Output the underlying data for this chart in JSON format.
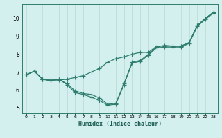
{
  "xlabel": "Humidex (Indice chaleur)",
  "background_color": "#d4f0ee",
  "line_color": "#2e7d6e",
  "xlim": [
    -0.5,
    23.5
  ],
  "ylim": [
    4.7,
    10.8
  ],
  "x_ticks": [
    0,
    1,
    2,
    3,
    4,
    5,
    6,
    7,
    8,
    9,
    10,
    11,
    12,
    13,
    14,
    15,
    16,
    17,
    18,
    19,
    20,
    21,
    22,
    23
  ],
  "y_ticks": [
    5,
    6,
    7,
    8,
    9,
    10
  ],
  "grid_color": "#b8d8d4",
  "markersize": 2.0,
  "linewidth": 0.9,
  "line1_x": [
    0,
    1,
    2,
    3,
    4,
    5,
    6,
    7,
    8,
    9,
    10,
    11,
    12,
    13,
    14,
    15,
    16,
    17,
    18,
    19,
    20,
    21,
    22,
    23
  ],
  "line1_y": [
    6.85,
    7.05,
    6.6,
    6.55,
    6.55,
    6.6,
    6.7,
    6.8,
    7.0,
    7.2,
    7.55,
    7.75,
    7.85,
    8.0,
    8.1,
    8.1,
    8.45,
    8.45,
    8.45,
    8.45,
    8.65,
    9.6,
    10.0,
    10.35
  ],
  "line2_x": [
    0,
    1,
    2,
    3,
    4,
    5,
    6,
    7,
    8,
    9,
    10,
    11,
    12,
    13,
    14,
    15,
    16,
    17,
    18,
    19,
    20,
    21,
    22,
    23
  ],
  "line2_y": [
    6.85,
    7.05,
    6.6,
    6.5,
    6.6,
    6.3,
    5.85,
    5.75,
    5.6,
    5.4,
    5.15,
    5.2,
    6.3,
    7.5,
    7.6,
    7.95,
    8.35,
    8.4,
    8.4,
    8.4,
    8.6,
    9.55,
    9.95,
    10.3
  ],
  "line3_x": [
    0,
    1,
    2,
    3,
    4,
    5,
    6,
    7,
    8,
    9,
    10,
    11,
    12,
    13,
    14,
    15,
    16,
    17,
    18,
    19,
    20,
    21,
    22,
    23
  ],
  "line3_y": [
    6.85,
    7.05,
    6.6,
    6.55,
    6.6,
    6.35,
    5.95,
    5.8,
    5.75,
    5.55,
    5.2,
    5.25,
    6.35,
    7.55,
    7.65,
    8.0,
    8.4,
    8.5,
    8.45,
    8.45,
    8.65,
    9.6,
    10.0,
    10.35
  ]
}
